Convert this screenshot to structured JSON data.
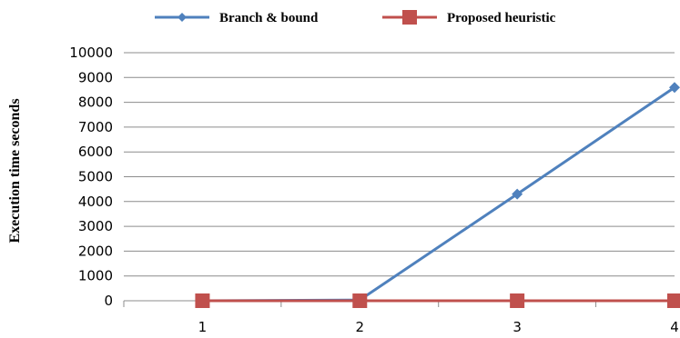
{
  "chart_data": {
    "type": "line",
    "title": "",
    "xlabel": "",
    "ylabel": "Execution time seconds",
    "categories": [
      "1",
      "2",
      "3",
      "4"
    ],
    "ylim": [
      0,
      10000
    ],
    "yticks": [
      "0",
      "1000",
      "2000",
      "3000",
      "4000",
      "5000",
      "6000",
      "7000",
      "8000",
      "9000",
      "10000"
    ],
    "grid": "horizontal",
    "legend_position": "top",
    "series": [
      {
        "name": "Branch & bound",
        "values": [
          0,
          30,
          4300,
          8600
        ],
        "color": "#4f81bd",
        "marker": "diamond"
      },
      {
        "name": "Proposed heuristic",
        "values": [
          0,
          0,
          0,
          0
        ],
        "color": "#c0504d",
        "marker": "square"
      }
    ]
  }
}
